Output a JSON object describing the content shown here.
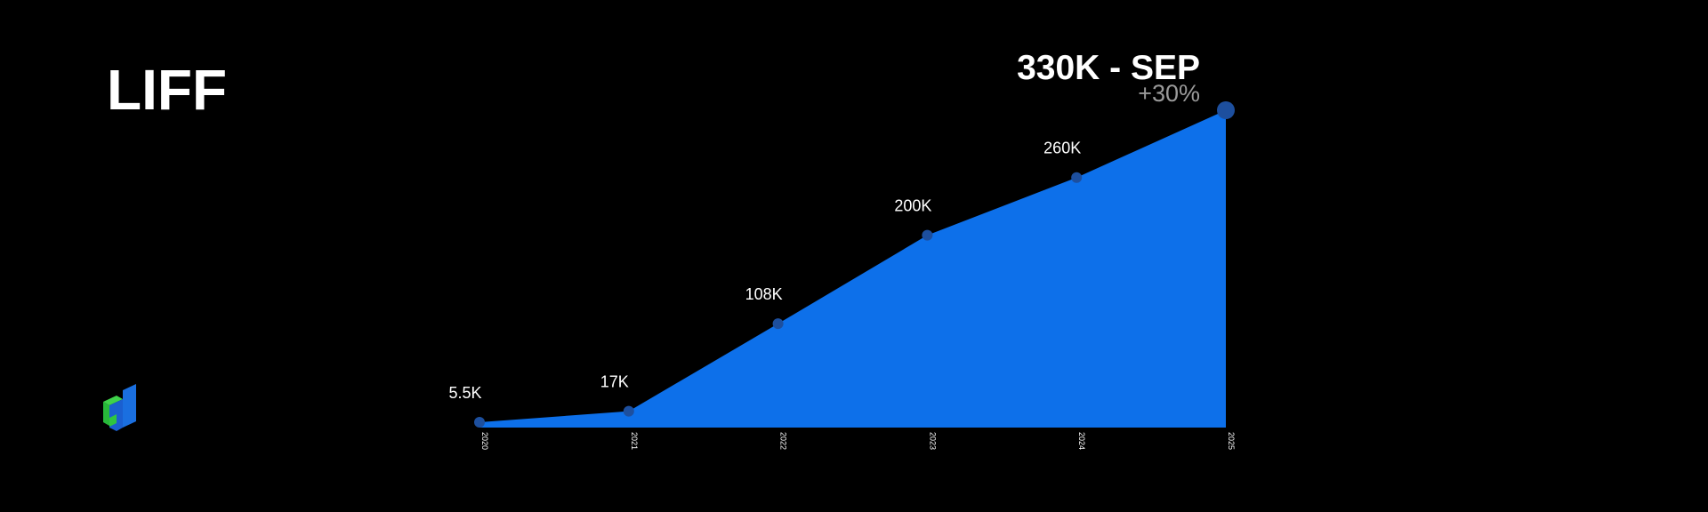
{
  "chart_data": {
    "type": "area",
    "title": "LIFF",
    "categories": [
      "2020",
      "2021",
      "2022",
      "2023",
      "2024",
      "2025"
    ],
    "values": [
      5500,
      17000,
      108000,
      200000,
      260000,
      330000
    ],
    "value_labels": [
      "5.5K",
      "17K",
      "108K",
      "200K",
      "260K",
      "330K - SEP"
    ],
    "annotation": "+30%",
    "color": "#0d70ea",
    "marker_color": "#1d4f9e"
  }
}
